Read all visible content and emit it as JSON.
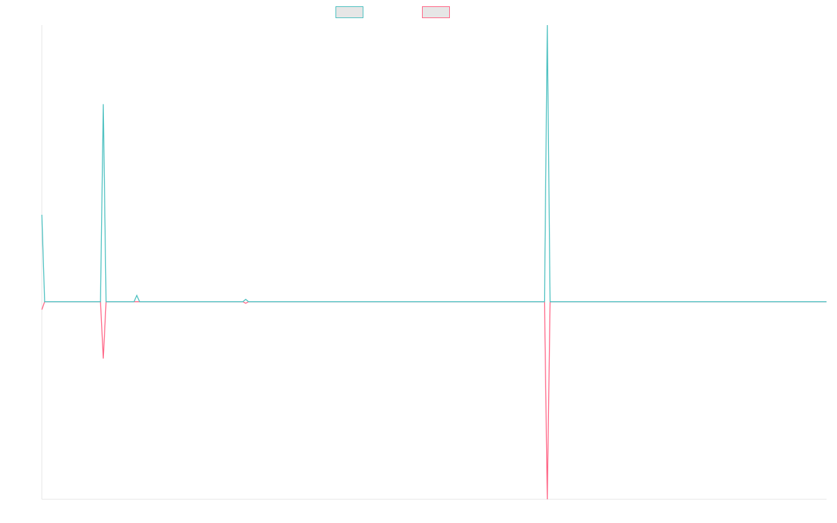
{
  "chart_data": {
    "type": "line",
    "title": "",
    "xlabel": "",
    "ylabel": "",
    "grid": false,
    "legend_position": "top-center",
    "x_count": 282,
    "ylim": [
      -2.5,
      3.5
    ],
    "series": [
      {
        "color": "#4bc0c0",
        "fill": "#e6e6e6",
        "points": [
          [
            0,
            1.1
          ],
          [
            1,
            0
          ],
          [
            21,
            0
          ],
          [
            22,
            2.5
          ],
          [
            23,
            0
          ],
          [
            33,
            0
          ],
          [
            34,
            0.08
          ],
          [
            35,
            0
          ],
          [
            72,
            0
          ],
          [
            73,
            0.03
          ],
          [
            74,
            0
          ],
          [
            180,
            0
          ],
          [
            181,
            3.5
          ],
          [
            182,
            0
          ],
          [
            281,
            0
          ]
        ]
      },
      {
        "color": "#ff6384",
        "fill": "#e6e6e6",
        "points": [
          [
            0,
            -0.1
          ],
          [
            1,
            0
          ],
          [
            21,
            0
          ],
          [
            22,
            -0.72
          ],
          [
            23,
            0
          ],
          [
            72,
            0
          ],
          [
            73,
            -0.02
          ],
          [
            74,
            0
          ],
          [
            180,
            0
          ],
          [
            181,
            -2.5
          ],
          [
            182,
            0
          ],
          [
            281,
            0
          ]
        ]
      }
    ]
  }
}
